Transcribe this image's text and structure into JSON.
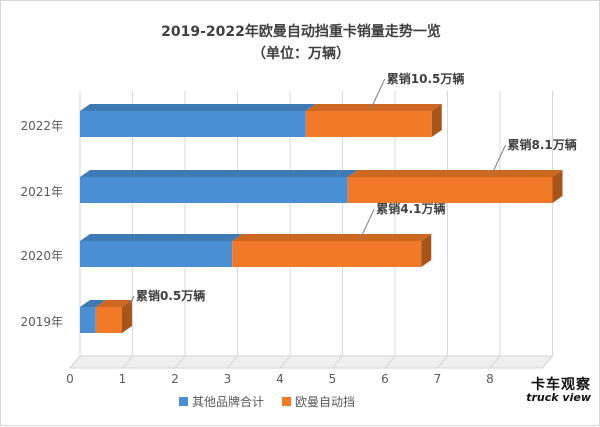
{
  "chart_data": {
    "type": "bar",
    "orientation": "horizontal",
    "stacked": true,
    "style": "3d",
    "title": "2019-2022年欧曼自动挡重卡销量走势一览",
    "subtitle": "（单位：万辆）",
    "categories": [
      "2022年",
      "2021年",
      "2020年",
      "2019年"
    ],
    "series": [
      {
        "name": "其他品牌合计",
        "values": [
          4.3,
          5.1,
          2.9,
          0.3
        ],
        "color": "#4a8fd4"
      },
      {
        "name": "欧曼自动挡",
        "values": [
          2.4,
          3.9,
          3.6,
          0.5
        ],
        "color": "#f07a28"
      }
    ],
    "annotations": [
      "累销10.5万辆",
      "累销8.1万辆",
      "累销4.1万辆",
      "累销0.5万辆"
    ],
    "xlim": [
      0,
      9
    ],
    "xticks": [
      "0",
      "1",
      "2",
      "3",
      "4",
      "5",
      "6",
      "7",
      "8"
    ],
    "grid": true,
    "legend": "bottom",
    "watermark": {
      "line1": "卡车观察",
      "line2": "truck view"
    }
  }
}
